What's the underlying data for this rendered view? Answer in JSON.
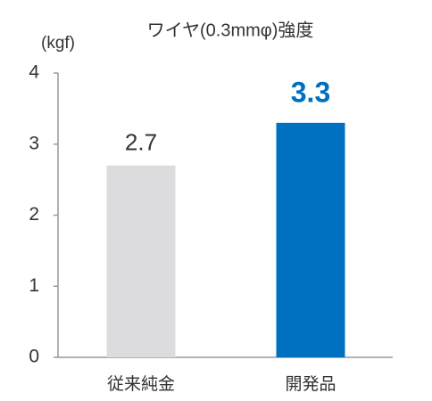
{
  "chart_data": {
    "type": "bar",
    "title": "ワイヤ(0.3mmφ)強度",
    "y_label": "(kgf)",
    "categories": [
      "従来純金",
      "開発品"
    ],
    "values": [
      2.7,
      3.3
    ],
    "colors": [
      "#dcdcdf",
      "#0070c0"
    ],
    "value_label_colors": [
      "#333333",
      "#0070c0"
    ],
    "ylim": [
      0,
      4
    ],
    "yticks": [
      0,
      1,
      2,
      3,
      4
    ],
    "grid": false
  }
}
